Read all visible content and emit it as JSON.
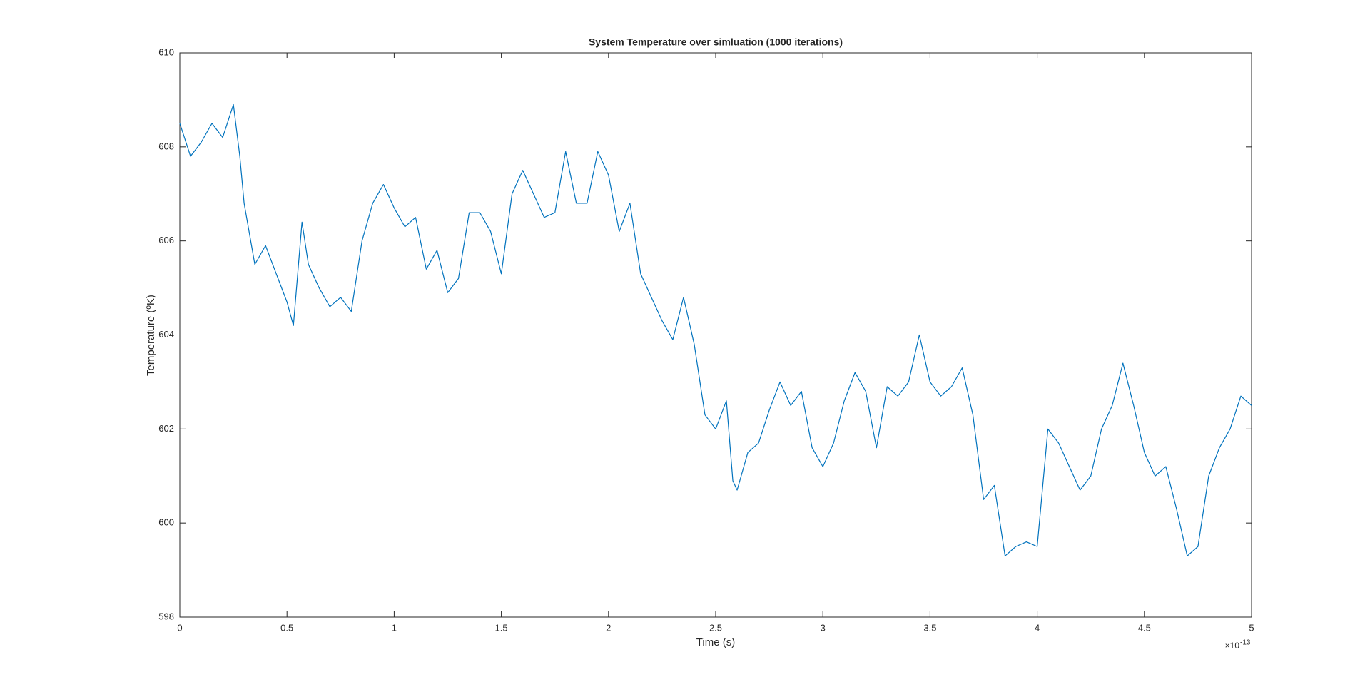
{
  "chart_data": {
    "type": "line",
    "title": "System Temperature over simluation (1000 iterations)",
    "x_label": "Time (s)",
    "y_label": "Temperature (ºK)",
    "x_multiplier": {
      "base": "×10",
      "exponent": "-13"
    },
    "x": [
      0,
      0.05,
      0.1,
      0.15,
      0.2,
      0.25,
      0.28,
      0.3,
      0.35,
      0.4,
      0.45,
      0.5,
      0.53,
      0.57,
      0.6,
      0.65,
      0.7,
      0.75,
      0.8,
      0.85,
      0.9,
      0.95,
      1.0,
      1.05,
      1.1,
      1.15,
      1.2,
      1.25,
      1.3,
      1.35,
      1.4,
      1.45,
      1.5,
      1.55,
      1.6,
      1.65,
      1.7,
      1.75,
      1.8,
      1.85,
      1.9,
      1.95,
      2.0,
      2.05,
      2.1,
      2.15,
      2.2,
      2.25,
      2.3,
      2.35,
      2.4,
      2.45,
      2.5,
      2.55,
      2.58,
      2.6,
      2.65,
      2.7,
      2.75,
      2.8,
      2.85,
      2.9,
      2.95,
      3.0,
      3.05,
      3.1,
      3.15,
      3.2,
      3.25,
      3.3,
      3.35,
      3.4,
      3.45,
      3.5,
      3.55,
      3.6,
      3.65,
      3.7,
      3.75,
      3.8,
      3.85,
      3.9,
      3.95,
      4.0,
      4.05,
      4.1,
      4.15,
      4.2,
      4.25,
      4.3,
      4.35,
      4.4,
      4.45,
      4.5,
      4.55,
      4.6,
      4.65,
      4.7,
      4.75,
      4.8,
      4.85,
      4.9,
      4.95,
      5.0
    ],
    "series": [
      {
        "name": "Temperature",
        "color": "#0072BD",
        "values": [
          608.5,
          607.8,
          608.1,
          608.5,
          608.2,
          608.9,
          607.8,
          606.8,
          605.5,
          605.9,
          605.3,
          604.7,
          604.2,
          606.4,
          605.5,
          605.0,
          604.6,
          604.8,
          604.5,
          606.0,
          606.8,
          607.2,
          606.7,
          606.3,
          606.5,
          605.4,
          605.8,
          604.9,
          605.2,
          606.6,
          606.6,
          606.2,
          605.3,
          607.0,
          607.5,
          607.0,
          606.5,
          606.6,
          607.9,
          606.8,
          606.8,
          607.9,
          607.4,
          606.2,
          606.8,
          605.3,
          604.8,
          604.3,
          603.9,
          604.8,
          603.8,
          602.3,
          602.0,
          602.6,
          600.9,
          600.7,
          601.5,
          601.7,
          602.4,
          603.0,
          602.5,
          602.8,
          601.6,
          601.2,
          601.7,
          602.6,
          603.2,
          602.8,
          601.6,
          602.9,
          602.7,
          603.0,
          604.0,
          603.0,
          602.7,
          602.9,
          603.3,
          602.3,
          600.5,
          600.8,
          599.3,
          599.5,
          599.6,
          599.5,
          602.0,
          601.7,
          601.2,
          600.7,
          601.0,
          602.0,
          602.5,
          603.4,
          602.5,
          601.5,
          601.0,
          601.2,
          600.3,
          599.3,
          599.5,
          601.0,
          601.6,
          602.0,
          602.7,
          602.5
        ]
      }
    ],
    "xlim": [
      0,
      5
    ],
    "xticks": [
      0,
      0.5,
      1,
      1.5,
      2,
      2.5,
      3,
      3.5,
      4,
      4.5,
      5
    ],
    "ylim": [
      598,
      610
    ],
    "yticks": [
      598,
      600,
      602,
      604,
      606,
      608,
      610
    ],
    "grid": false
  }
}
